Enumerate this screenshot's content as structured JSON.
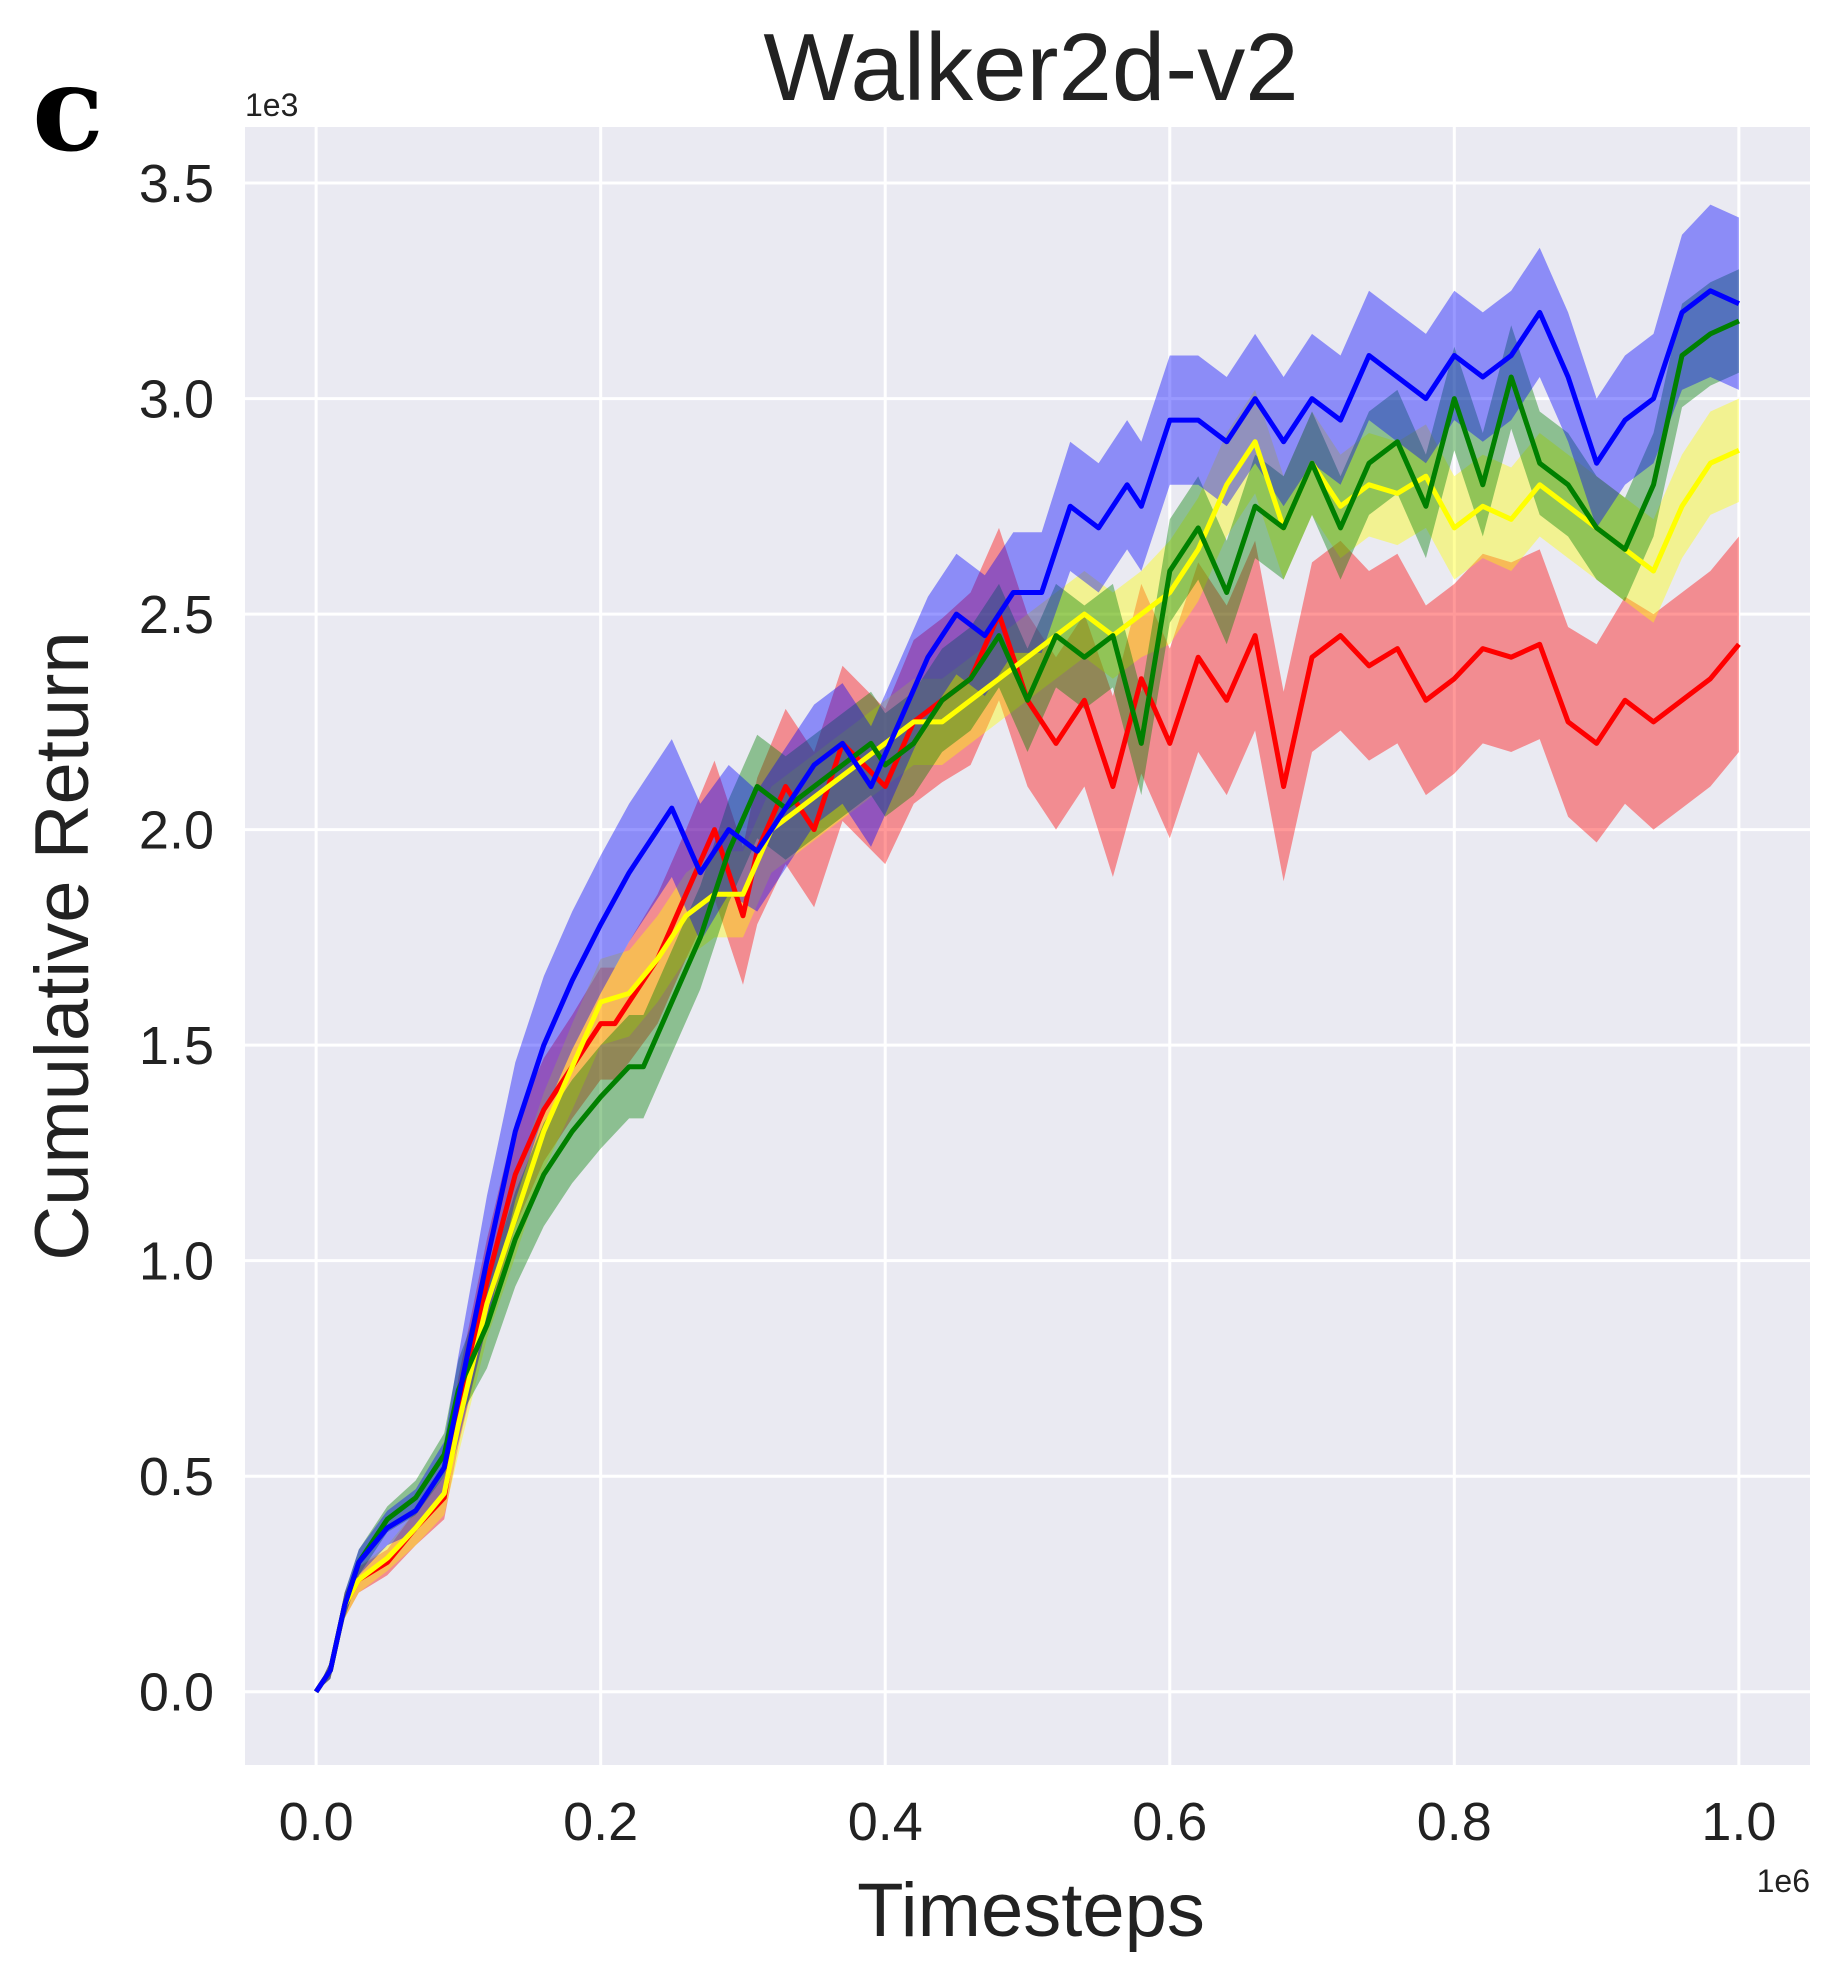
{
  "panel_label": "c",
  "chart_data": {
    "type": "line",
    "title": "Walker2d-v2",
    "xlabel": "Timesteps",
    "ylabel": "Cumulative Return",
    "x_scale_label": "1e6",
    "y_scale_label": "1e3",
    "xlim": [
      -0.05,
      1.05
    ],
    "ylim": [
      -0.17,
      3.63
    ],
    "x_ticks": [
      0.0,
      0.2,
      0.4,
      0.6,
      0.8,
      1.0
    ],
    "x_tick_labels": [
      "0.0",
      "0.2",
      "0.4",
      "0.6",
      "0.8",
      "1.0"
    ],
    "y_ticks": [
      0.0,
      0.5,
      1.0,
      1.5,
      2.0,
      2.5,
      3.0,
      3.5
    ],
    "y_tick_labels": [
      "0.0",
      "0.5",
      "1.0",
      "1.5",
      "2.0",
      "2.5",
      "3.0",
      "3.5"
    ],
    "grid": true,
    "background": "#EAEAF2",
    "series": [
      {
        "color": "#FF0000",
        "x": [
          0,
          0.01,
          0.02,
          0.03,
          0.05,
          0.07,
          0.09,
          0.1,
          0.12,
          0.14,
          0.16,
          0.18,
          0.2,
          0.21,
          0.22,
          0.24,
          0.26,
          0.28,
          0.3,
          0.31,
          0.33,
          0.35,
          0.37,
          0.4,
          0.42,
          0.44,
          0.46,
          0.48,
          0.5,
          0.52,
          0.54,
          0.56,
          0.58,
          0.6,
          0.62,
          0.64,
          0.66,
          0.68,
          0.7,
          0.72,
          0.74,
          0.76,
          0.78,
          0.8,
          0.82,
          0.84,
          0.86,
          0.88,
          0.9,
          0.92,
          0.94,
          0.96,
          0.98,
          1.0
        ],
        "y": [
          0.0,
          0.05,
          0.2,
          0.26,
          0.3,
          0.38,
          0.45,
          0.65,
          0.95,
          1.2,
          1.35,
          1.45,
          1.55,
          1.55,
          1.6,
          1.7,
          1.85,
          2.0,
          1.8,
          1.95,
          2.1,
          2.0,
          2.2,
          2.1,
          2.25,
          2.3,
          2.35,
          2.5,
          2.3,
          2.2,
          2.3,
          2.1,
          2.35,
          2.2,
          2.4,
          2.3,
          2.45,
          2.1,
          2.4,
          2.45,
          2.38,
          2.42,
          2.3,
          2.35,
          2.42,
          2.4,
          2.43,
          2.25,
          2.2,
          2.3,
          2.25,
          2.3,
          2.35,
          2.43
        ],
        "spread": [
          0.0,
          0.02,
          0.03,
          0.03,
          0.03,
          0.04,
          0.05,
          0.08,
          0.1,
          0.12,
          0.12,
          0.12,
          0.13,
          0.13,
          0.14,
          0.15,
          0.15,
          0.16,
          0.16,
          0.17,
          0.18,
          0.18,
          0.18,
          0.18,
          0.19,
          0.19,
          0.2,
          0.2,
          0.2,
          0.2,
          0.2,
          0.21,
          0.22,
          0.22,
          0.22,
          0.22,
          0.22,
          0.22,
          0.22,
          0.22,
          0.22,
          0.22,
          0.22,
          0.22,
          0.22,
          0.22,
          0.22,
          0.22,
          0.23,
          0.24,
          0.25,
          0.25,
          0.25,
          0.25
        ]
      },
      {
        "color": "#FFFF00",
        "x": [
          0,
          0.01,
          0.02,
          0.03,
          0.05,
          0.07,
          0.09,
          0.1,
          0.12,
          0.14,
          0.16,
          0.18,
          0.2,
          0.22,
          0.24,
          0.26,
          0.28,
          0.3,
          0.32,
          0.34,
          0.36,
          0.38,
          0.4,
          0.42,
          0.44,
          0.46,
          0.48,
          0.5,
          0.52,
          0.54,
          0.56,
          0.58,
          0.6,
          0.62,
          0.64,
          0.66,
          0.68,
          0.7,
          0.72,
          0.74,
          0.76,
          0.78,
          0.8,
          0.82,
          0.84,
          0.86,
          0.88,
          0.9,
          0.92,
          0.94,
          0.96,
          0.98,
          1.0
        ],
        "y": [
          0.0,
          0.05,
          0.2,
          0.26,
          0.31,
          0.38,
          0.46,
          0.62,
          0.9,
          1.1,
          1.3,
          1.45,
          1.6,
          1.62,
          1.7,
          1.8,
          1.85,
          1.85,
          2.0,
          2.05,
          2.1,
          2.15,
          2.2,
          2.25,
          2.25,
          2.3,
          2.35,
          2.4,
          2.45,
          2.5,
          2.45,
          2.5,
          2.55,
          2.65,
          2.8,
          2.9,
          2.7,
          2.85,
          2.75,
          2.8,
          2.78,
          2.82,
          2.7,
          2.75,
          2.72,
          2.8,
          2.75,
          2.7,
          2.65,
          2.6,
          2.75,
          2.85,
          2.88
        ],
        "spread": [
          0.0,
          0.02,
          0.03,
          0.03,
          0.03,
          0.04,
          0.05,
          0.07,
          0.08,
          0.09,
          0.09,
          0.1,
          0.1,
          0.1,
          0.1,
          0.1,
          0.1,
          0.1,
          0.1,
          0.1,
          0.1,
          0.1,
          0.1,
          0.1,
          0.1,
          0.1,
          0.1,
          0.1,
          0.1,
          0.1,
          0.1,
          0.1,
          0.12,
          0.12,
          0.12,
          0.12,
          0.12,
          0.12,
          0.12,
          0.12,
          0.12,
          0.12,
          0.12,
          0.12,
          0.12,
          0.12,
          0.12,
          0.12,
          0.12,
          0.12,
          0.12,
          0.12,
          0.12
        ]
      },
      {
        "color": "#008000",
        "x": [
          0,
          0.01,
          0.02,
          0.03,
          0.05,
          0.07,
          0.09,
          0.1,
          0.12,
          0.14,
          0.16,
          0.18,
          0.2,
          0.22,
          0.23,
          0.25,
          0.27,
          0.29,
          0.31,
          0.33,
          0.35,
          0.37,
          0.39,
          0.4,
          0.42,
          0.44,
          0.46,
          0.48,
          0.5,
          0.52,
          0.54,
          0.56,
          0.58,
          0.6,
          0.62,
          0.64,
          0.66,
          0.68,
          0.7,
          0.72,
          0.74,
          0.76,
          0.78,
          0.8,
          0.82,
          0.84,
          0.86,
          0.88,
          0.9,
          0.92,
          0.94,
          0.96,
          0.98,
          1.0
        ],
        "y": [
          0.0,
          0.05,
          0.2,
          0.3,
          0.4,
          0.45,
          0.55,
          0.7,
          0.85,
          1.05,
          1.2,
          1.3,
          1.38,
          1.45,
          1.45,
          1.6,
          1.75,
          1.95,
          2.1,
          2.05,
          2.1,
          2.15,
          2.2,
          2.15,
          2.2,
          2.3,
          2.35,
          2.45,
          2.3,
          2.45,
          2.4,
          2.45,
          2.2,
          2.6,
          2.7,
          2.55,
          2.75,
          2.7,
          2.85,
          2.7,
          2.85,
          2.9,
          2.75,
          3.0,
          2.8,
          3.05,
          2.85,
          2.8,
          2.7,
          2.65,
          2.8,
          3.1,
          3.15,
          3.18
        ],
        "spread": [
          0.0,
          0.02,
          0.03,
          0.03,
          0.03,
          0.04,
          0.05,
          0.07,
          0.1,
          0.11,
          0.12,
          0.12,
          0.12,
          0.12,
          0.12,
          0.12,
          0.12,
          0.12,
          0.12,
          0.12,
          0.12,
          0.12,
          0.12,
          0.12,
          0.12,
          0.12,
          0.12,
          0.12,
          0.12,
          0.12,
          0.12,
          0.12,
          0.12,
          0.12,
          0.12,
          0.12,
          0.12,
          0.12,
          0.12,
          0.12,
          0.12,
          0.12,
          0.12,
          0.12,
          0.12,
          0.12,
          0.12,
          0.12,
          0.12,
          0.12,
          0.12,
          0.12,
          0.12,
          0.12
        ]
      },
      {
        "color": "#0000FF",
        "x": [
          0,
          0.01,
          0.02,
          0.03,
          0.05,
          0.07,
          0.09,
          0.1,
          0.12,
          0.14,
          0.16,
          0.18,
          0.2,
          0.22,
          0.24,
          0.25,
          0.27,
          0.29,
          0.31,
          0.33,
          0.35,
          0.37,
          0.39,
          0.41,
          0.43,
          0.45,
          0.47,
          0.49,
          0.51,
          0.53,
          0.55,
          0.57,
          0.58,
          0.6,
          0.62,
          0.64,
          0.66,
          0.68,
          0.7,
          0.72,
          0.74,
          0.76,
          0.78,
          0.8,
          0.82,
          0.84,
          0.86,
          0.88,
          0.9,
          0.92,
          0.94,
          0.96,
          0.98,
          1.0
        ],
        "y": [
          0.0,
          0.05,
          0.2,
          0.3,
          0.38,
          0.42,
          0.52,
          0.68,
          1.0,
          1.3,
          1.5,
          1.65,
          1.78,
          1.9,
          2.0,
          2.05,
          1.9,
          2.0,
          1.95,
          2.05,
          2.15,
          2.2,
          2.1,
          2.25,
          2.4,
          2.5,
          2.45,
          2.55,
          2.55,
          2.75,
          2.7,
          2.8,
          2.75,
          2.95,
          2.95,
          2.9,
          3.0,
          2.9,
          3.0,
          2.95,
          3.1,
          3.05,
          3.0,
          3.1,
          3.05,
          3.1,
          3.2,
          3.05,
          2.85,
          2.95,
          3.0,
          3.2,
          3.25,
          3.22
        ],
        "spread": [
          0.0,
          0.02,
          0.03,
          0.03,
          0.04,
          0.05,
          0.06,
          0.1,
          0.15,
          0.16,
          0.16,
          0.16,
          0.16,
          0.16,
          0.16,
          0.16,
          0.16,
          0.15,
          0.14,
          0.14,
          0.14,
          0.14,
          0.14,
          0.14,
          0.14,
          0.14,
          0.14,
          0.14,
          0.14,
          0.15,
          0.15,
          0.15,
          0.15,
          0.15,
          0.15,
          0.15,
          0.15,
          0.15,
          0.15,
          0.15,
          0.15,
          0.15,
          0.15,
          0.15,
          0.15,
          0.15,
          0.15,
          0.15,
          0.15,
          0.15,
          0.15,
          0.18,
          0.2,
          0.2
        ]
      }
    ]
  }
}
